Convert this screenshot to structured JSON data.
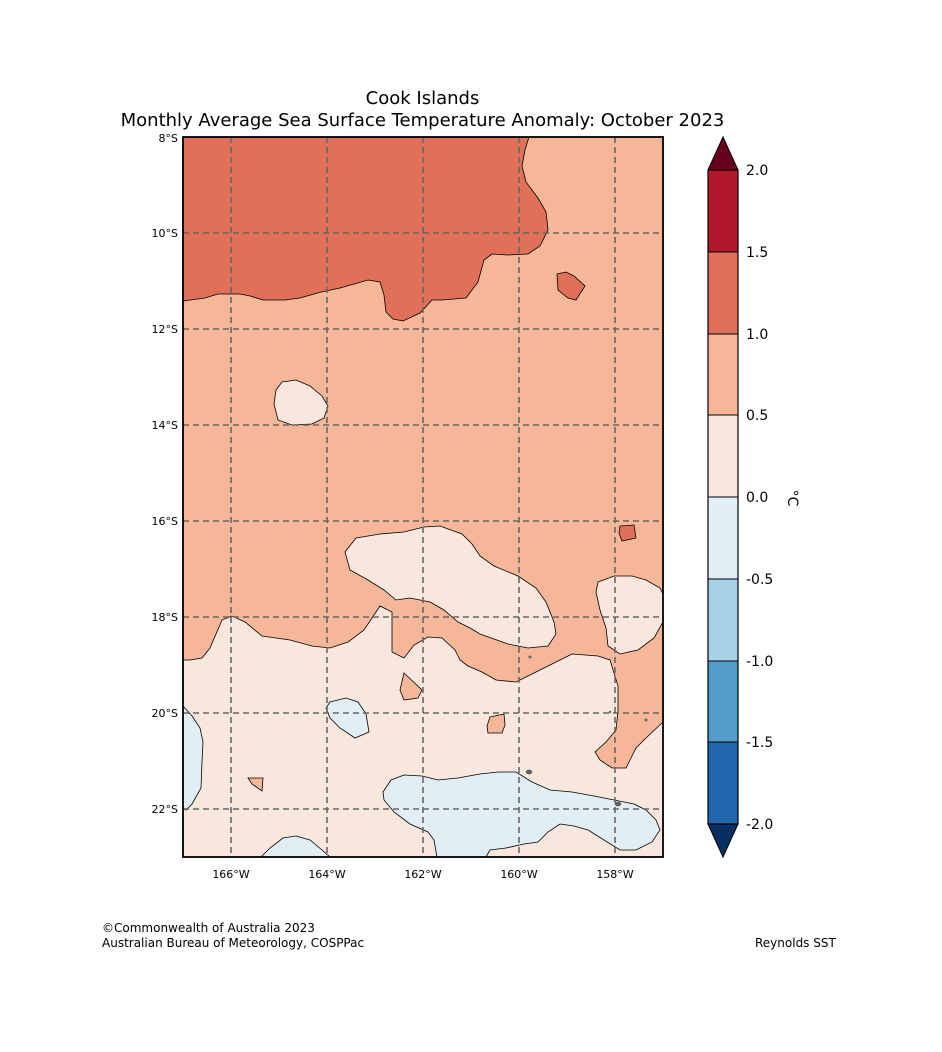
{
  "title": {
    "line1": "Cook Islands",
    "line2": "Monthly Average Sea Surface Temperature Anomaly: October 2023"
  },
  "map": {
    "lat_labels": [
      "8°S",
      "10°S",
      "12°S",
      "14°S",
      "16°S",
      "18°S",
      "20°S",
      "22°S"
    ],
    "lon_labels": [
      "166°W",
      "164°W",
      "162°W",
      "160°W",
      "158°W"
    ],
    "lon_range": [
      -167,
      -157
    ],
    "lat_range": [
      -23,
      -8
    ],
    "gridlines": true
  },
  "colorbar": {
    "unit": "°C",
    "ticks": [
      "2.0",
      "1.5",
      "1.0",
      "0.5",
      "0.0",
      "-0.5",
      "-1.0",
      "-1.5",
      "-2.0"
    ],
    "colors": {
      "over": "#67001f",
      "b_1.5_2.0": "#b2182b",
      "b_1.0_1.5": "#e07058",
      "b_0.5_1.0": "#f5b797",
      "b_0.0_0.5": "#f9e6dd",
      "b_-0.5_0.0": "#e2eef5",
      "b_-1.0_-0.5": "#a8d1e6",
      "b_-1.5_-1.0": "#539dcb",
      "b_-2.0_-1.5": "#2266ad",
      "under": "#053061"
    }
  },
  "footer": {
    "copyright": "©Commonwealth of Australia 2023",
    "agency": "Australian Bureau of Meteorology, COSPPac",
    "source": "Reynolds SST"
  }
}
